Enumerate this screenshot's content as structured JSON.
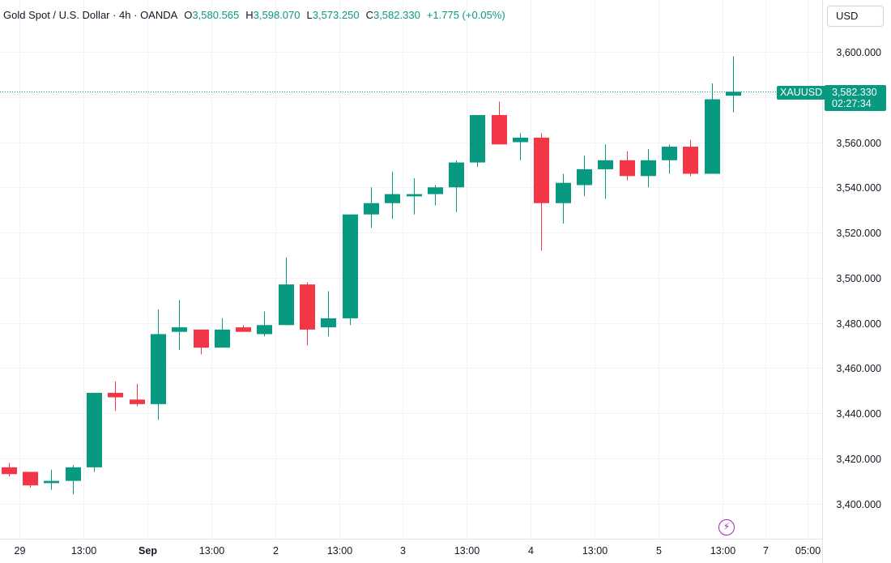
{
  "legend": {
    "symbol": "Gold Spot / U.S. Dollar · 4h · OANDA",
    "open_label": "O",
    "open": "3,580.565",
    "high_label": "H",
    "high": "3,598.070",
    "low_label": "L",
    "low": "3,573.250",
    "close_label": "C",
    "close": "3,582.330",
    "change": "+1.775 (+0.05%)"
  },
  "currency": "USD",
  "last_price": {
    "symbol": "XAUUSD",
    "price": "3,582.330",
    "countdown": "02:27:34"
  },
  "event_icon": "lightning-icon",
  "colors": {
    "up": "#089981",
    "down": "#f23645",
    "grid": "#f0f3fa",
    "text": "#131722"
  },
  "chart_data": {
    "type": "candlestick",
    "interval": "4h",
    "y_range": [
      3380,
      3630
    ],
    "y_ticks": [
      3400,
      3420,
      3440,
      3460,
      3480,
      3500,
      3520,
      3540,
      3560,
      3580,
      3600
    ],
    "y_tick_labels": [
      "3,400.000",
      "3,420.000",
      "3,440.000",
      "3,460.000",
      "3,480.000",
      "3,500.000",
      "3,520.000",
      "3,540.000",
      "3,560.000",
      "",
      "3,600.000"
    ],
    "x_labels": [
      {
        "label": "29",
        "bar": 0.5,
        "bold": false
      },
      {
        "label": "13:00",
        "bar": 3.5,
        "bold": false
      },
      {
        "label": "Sep",
        "bar": 6.5,
        "bold": true
      },
      {
        "label": "13:00",
        "bar": 9.5,
        "bold": false
      },
      {
        "label": "2",
        "bar": 12.5,
        "bold": false
      },
      {
        "label": "13:00",
        "bar": 15.5,
        "bold": false
      },
      {
        "label": "3",
        "bar": 18.5,
        "bold": false
      },
      {
        "label": "13:00",
        "bar": 21.5,
        "bold": false
      },
      {
        "label": "4",
        "bar": 24.5,
        "bold": false
      },
      {
        "label": "13:00",
        "bar": 27.5,
        "bold": false
      },
      {
        "label": "5",
        "bar": 30.5,
        "bold": false
      },
      {
        "label": "13:00",
        "bar": 33.5,
        "bold": false
      },
      {
        "label": "7",
        "bar": 35.5,
        "bold": false
      },
      {
        "label": "05:00",
        "bar": 37.5,
        "bold": false
      }
    ],
    "candles": [
      {
        "o": 3416,
        "h": 3418,
        "l": 3412,
        "c": 3413
      },
      {
        "o": 3414,
        "h": 3414,
        "l": 3407,
        "c": 3408
      },
      {
        "o": 3409,
        "h": 3415,
        "l": 3406,
        "c": 3410
      },
      {
        "o": 3410,
        "h": 3417,
        "l": 3404,
        "c": 3416
      },
      {
        "o": 3416,
        "h": 3449,
        "l": 3414,
        "c": 3449
      },
      {
        "o": 3449,
        "h": 3454,
        "l": 3441,
        "c": 3447
      },
      {
        "o": 3446,
        "h": 3453,
        "l": 3443,
        "c": 3444
      },
      {
        "o": 3444,
        "h": 3486,
        "l": 3437,
        "c": 3475
      },
      {
        "o": 3476,
        "h": 3490,
        "l": 3468,
        "c": 3478
      },
      {
        "o": 3477,
        "h": 3477,
        "l": 3466,
        "c": 3469
      },
      {
        "o": 3469,
        "h": 3482,
        "l": 3469,
        "c": 3477
      },
      {
        "o": 3478,
        "h": 3479,
        "l": 3476,
        "c": 3476
      },
      {
        "o": 3475,
        "h": 3485,
        "l": 3474,
        "c": 3479
      },
      {
        "o": 3479,
        "h": 3509,
        "l": 3479,
        "c": 3497
      },
      {
        "o": 3497,
        "h": 3498,
        "l": 3470,
        "c": 3477
      },
      {
        "o": 3478,
        "h": 3494,
        "l": 3474,
        "c": 3482
      },
      {
        "o": 3482,
        "h": 3528,
        "l": 3479,
        "c": 3528
      },
      {
        "o": 3528,
        "h": 3540,
        "l": 3522,
        "c": 3533
      },
      {
        "o": 3533,
        "h": 3547,
        "l": 3526,
        "c": 3537
      },
      {
        "o": 3536,
        "h": 3544,
        "l": 3528,
        "c": 3537
      },
      {
        "o": 3537,
        "h": 3541,
        "l": 3532,
        "c": 3540
      },
      {
        "o": 3540,
        "h": 3552,
        "l": 3529,
        "c": 3551
      },
      {
        "o": 3551,
        "h": 3572,
        "l": 3549,
        "c": 3572
      },
      {
        "o": 3572,
        "h": 3578,
        "l": 3559,
        "c": 3559
      },
      {
        "o": 3560,
        "h": 3564,
        "l": 3552,
        "c": 3562
      },
      {
        "o": 3562,
        "h": 3564,
        "l": 3512,
        "c": 3533
      },
      {
        "o": 3533,
        "h": 3546,
        "l": 3524,
        "c": 3542
      },
      {
        "o": 3541,
        "h": 3554,
        "l": 3536,
        "c": 3548
      },
      {
        "o": 3548,
        "h": 3559,
        "l": 3535,
        "c": 3552
      },
      {
        "o": 3552,
        "h": 3556,
        "l": 3543,
        "c": 3545
      },
      {
        "o": 3545,
        "h": 3557,
        "l": 3540,
        "c": 3552
      },
      {
        "o": 3552,
        "h": 3559,
        "l": 3546,
        "c": 3558
      },
      {
        "o": 3558,
        "h": 3561,
        "l": 3545,
        "c": 3546
      },
      {
        "o": 3546,
        "h": 3586,
        "l": 3546,
        "c": 3579
      },
      {
        "o": 3580.565,
        "h": 3598.07,
        "l": 3573.25,
        "c": 3582.33
      }
    ]
  }
}
